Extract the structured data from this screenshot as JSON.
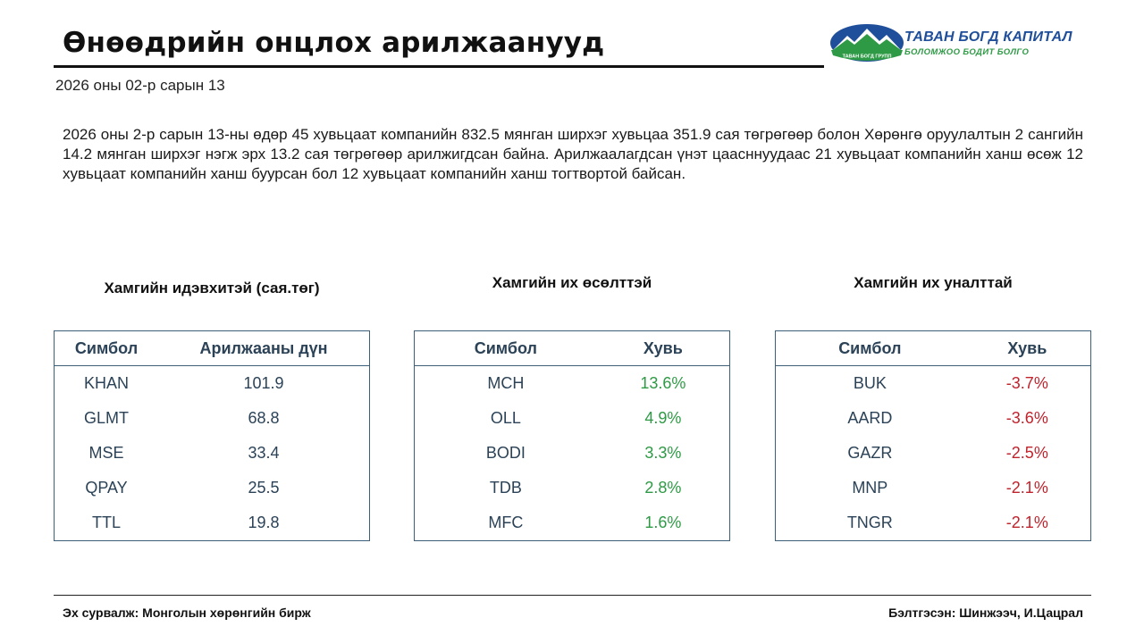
{
  "header": {
    "title": "Өнөөдрийн онцлох арилжаанууд",
    "date": "2026 оны 02-р сарын 13"
  },
  "logo": {
    "name": "ТАВАН БОГД КАПИТАЛ",
    "slogan": "БОЛОМЖОО БОДИТ БОЛГО",
    "badge_text": "ТАВАН БОГД ГРУПП",
    "icon": "mountain-logo-icon",
    "colors": {
      "blue": "#1f4e9a",
      "green": "#2e9a45"
    }
  },
  "summary": "2026 оны 2-р сарын 13-ны өдөр 45 хувьцаат компанийн 832.5 мянган ширхэг хувьцаа 351.9 сая төгрөгөөр болон Хөрөнгө оруулалтын 2 сангийн 14.2 мянган ширхэг нэгж эрх 13.2 сая төгрөгөөр арилжигдсан байна. Арилжаалагдсан үнэт цаасннуудаас 21 хувьцаат компанийн ханш өсөж 12 хувьцаат компанийн ханш буурсан бол 12 хувьцаат компанийн ханш тогтвортой байсан.",
  "panels": {
    "active": {
      "title": "Хамгийн идэвхитэй (сая.төг)",
      "columns": [
        "Симбол",
        "Арилжааны дүн"
      ],
      "rows": [
        {
          "symbol": "KHAN",
          "value": "101.9"
        },
        {
          "symbol": "GLMT",
          "value": "68.8"
        },
        {
          "symbol": "MSE",
          "value": "33.4"
        },
        {
          "symbol": "QPAY",
          "value": "25.5"
        },
        {
          "symbol": "TTL",
          "value": "19.8"
        }
      ]
    },
    "gainers": {
      "title": "Хамгийн их өсөлттэй",
      "columns": [
        "Симбол",
        "Хувь"
      ],
      "rows": [
        {
          "symbol": "MCH",
          "value": "13.6%"
        },
        {
          "symbol": "OLL",
          "value": "4.9%"
        },
        {
          "symbol": "BODI",
          "value": "3.3%"
        },
        {
          "symbol": "TDB",
          "value": "2.8%"
        },
        {
          "symbol": "MFC",
          "value": "1.6%"
        }
      ]
    },
    "losers": {
      "title": "Хамгийн их уналттай",
      "columns": [
        "Симбол",
        "Хувь"
      ],
      "rows": [
        {
          "symbol": "BUK",
          "value": "-3.7%"
        },
        {
          "symbol": "AARD",
          "value": "-3.6%"
        },
        {
          "symbol": "GAZR",
          "value": "-2.5%"
        },
        {
          "symbol": "MNP",
          "value": "-2.1%"
        },
        {
          "symbol": "TNGR",
          "value": "-2.1%"
        }
      ]
    }
  },
  "colors": {
    "table_border": "#3e5f7a",
    "table_text": "#2b4257",
    "gain": "#2e9a45",
    "loss": "#c0232c"
  },
  "footer": {
    "source": "Эх сурвалж: Монголын хөрөнгийн бирж",
    "prepared_by": "Бэлтгэсэн: Шинжээч, И.Цацрал"
  }
}
